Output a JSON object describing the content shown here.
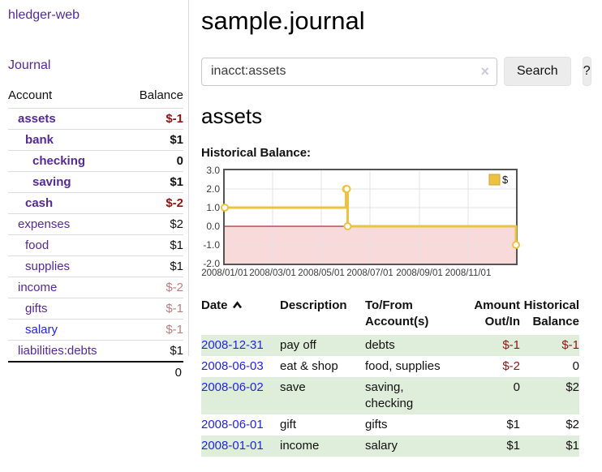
{
  "app": {
    "brand": "hledger-web"
  },
  "colors": {
    "link_purple": "#552a92",
    "link_blue": "#2323dd",
    "negative_strong": "#8e1414",
    "negative_muted": "#b87f7f",
    "row_highlight_green": "#dfeeda",
    "chart_line_gold": "#edc240",
    "chart_negative_fill": "#f9dada",
    "chart_zero_line_red": "#990000",
    "button_gray": "#ececec"
  },
  "sidebar": {
    "nav": {
      "journal": "Journal"
    },
    "accounts": {
      "col_account": "Account",
      "col_balance": "Balance",
      "rows": [
        {
          "name": "assets",
          "depth": 1,
          "bold": true,
          "balance": "$-1",
          "tone": "neg-strong"
        },
        {
          "name": "bank",
          "depth": 2,
          "bold": true,
          "balance": "$1",
          "tone": "normal"
        },
        {
          "name": "checking",
          "depth": 3,
          "bold": true,
          "balance": "0",
          "tone": "normal"
        },
        {
          "name": "saving",
          "depth": 3,
          "bold": true,
          "balance": "$1",
          "tone": "normal"
        },
        {
          "name": "cash",
          "depth": 2,
          "bold": true,
          "balance": "$-2",
          "tone": "neg-strong"
        },
        {
          "name": "expenses",
          "depth": 1,
          "bold": false,
          "balance": "$2",
          "tone": "normal"
        },
        {
          "name": "food",
          "depth": 2,
          "bold": false,
          "balance": "$1",
          "tone": "normal"
        },
        {
          "name": "supplies",
          "depth": 2,
          "bold": false,
          "balance": "$1",
          "tone": "normal"
        },
        {
          "name": "income",
          "depth": 1,
          "bold": false,
          "balance": "$-2",
          "tone": "neg-muted"
        },
        {
          "name": "gifts",
          "depth": 2,
          "bold": false,
          "balance": "$-1",
          "tone": "neg-muted"
        },
        {
          "name": "salary",
          "depth": 2,
          "bold": false,
          "balance": "$-1",
          "tone": "neg-muted",
          "link": "unvisited"
        },
        {
          "name": "liabilities:debts",
          "depth": 1,
          "bold": false,
          "balance": "$1",
          "tone": "normal"
        }
      ],
      "total": "0"
    }
  },
  "main": {
    "title": "sample.journal",
    "search": {
      "value": "inacct:assets",
      "clear_icon": "×",
      "button_label": "Search",
      "help_label": "?"
    },
    "account_heading": "assets",
    "chart_title": "Historical Balance:",
    "register": {
      "headers": [
        {
          "line1": "Date",
          "line2": "",
          "sorted": "ascending"
        },
        {
          "line1": "Description",
          "line2": ""
        },
        {
          "line1": "To/From",
          "line2": "Account(s)"
        },
        {
          "line1": "Amount",
          "line2": "Out/In"
        },
        {
          "line1": "Historical",
          "line2": "Balance"
        }
      ],
      "rows": [
        {
          "date": "2008-12-31",
          "description": "pay off",
          "accounts": "debts",
          "amount": "$-1",
          "amount_tone": "neg",
          "balance": "$-1",
          "balance_tone": "neg",
          "highlight": true
        },
        {
          "date": "2008-06-03",
          "description": "eat & shop",
          "accounts": "food, supplies",
          "amount": "$-2",
          "amount_tone": "neg",
          "balance": "0",
          "balance_tone": "normal",
          "highlight": false
        },
        {
          "date": "2008-06-02",
          "description": "save",
          "accounts": "saving,\nchecking",
          "amount": "0",
          "amount_tone": "normal",
          "balance": "$2",
          "balance_tone": "normal",
          "highlight": true
        },
        {
          "date": "2008-06-01",
          "description": "gift",
          "accounts": "gifts",
          "amount": "$1",
          "amount_tone": "normal",
          "balance": "$2",
          "balance_tone": "normal",
          "highlight": false
        },
        {
          "date": "2008-01-01",
          "description": "income",
          "accounts": "salary",
          "amount": "$1",
          "amount_tone": "normal",
          "balance": "$1",
          "balance_tone": "normal",
          "highlight": true
        }
      ]
    }
  },
  "chart_data": {
    "type": "line",
    "title": "Historical Balance:",
    "step": true,
    "grid": true,
    "legend_position": "top-right",
    "x_range": [
      "2008-01-01",
      "2008-12-31"
    ],
    "ylim": [
      -2,
      3
    ],
    "y_ticks": [
      "3.0",
      "2.0",
      "1.0",
      "0.0",
      "-1.0",
      "-2.0"
    ],
    "x_ticks": [
      {
        "date": "2008-01-01",
        "label": "2008/01/01"
      },
      {
        "date": "2008-03-01",
        "label": "2008/03/01"
      },
      {
        "date": "2008-05-01",
        "label": "2008/05/01"
      },
      {
        "date": "2008-07-01",
        "label": "2008/07/01"
      },
      {
        "date": "2008-09-01",
        "label": "2008/09/01"
      },
      {
        "date": "2008-11-01",
        "label": "2008/11/01"
      }
    ],
    "series": [
      {
        "name": "$",
        "color": "#edc240",
        "points": [
          [
            "2008-01-01",
            1
          ],
          [
            "2008-06-01",
            2
          ],
          [
            "2008-06-02",
            2
          ],
          [
            "2008-06-03",
            0
          ],
          [
            "2008-12-31",
            -1
          ]
        ]
      }
    ],
    "negative_region_fill": "#f9dada",
    "zero_line_color": "#990000"
  }
}
